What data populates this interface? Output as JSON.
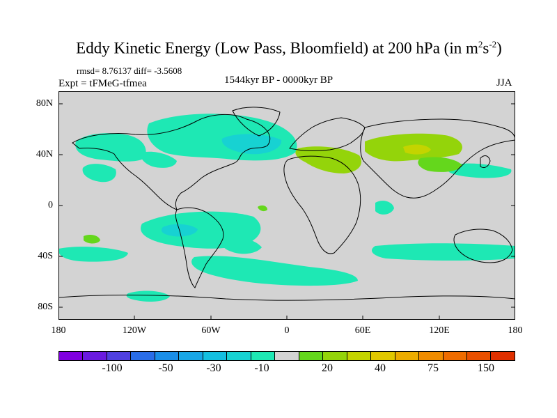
{
  "title_main": "Eddy Kinetic Energy (Low Pass, Bloomfield) at 200 hPa (in m",
  "title_sup1": "2",
  "title_mid": "s",
  "title_sup2": "-2",
  "title_end": ")",
  "stats": "rmsd= 8.76137 diff= -3.5608",
  "experiment": "Expt = tFMeG-tfmea",
  "period": "1544kyr BP - 0000kyr BP",
  "season": "JJA",
  "lat_ticks": [
    "80N",
    "40N",
    "0",
    "40S",
    "80S"
  ],
  "lon_ticks": [
    "180",
    "120W",
    "60W",
    "0",
    "60E",
    "120E",
    "180"
  ],
  "colors": {
    "background_field": "#d3d3d3",
    "neg_small": "#1ee8b4",
    "neg_medium": "#17d2d2",
    "neg_large": "#1ab9e3",
    "pos_small": "#64d71c",
    "pos_medium": "#94d40a"
  },
  "colorbar": {
    "colors": [
      "#8000e0",
      "#6a1adf",
      "#4f3fe0",
      "#2a6de8",
      "#1a8ee8",
      "#18a6e6",
      "#14bfe0",
      "#17d2d2",
      "#1ee8b4",
      "#d3d3d3",
      "#64d71c",
      "#94d40a",
      "#c4d400",
      "#e1c800",
      "#ecac00",
      "#f08c00",
      "#ef6c00",
      "#e95000",
      "#e03000"
    ],
    "labels": [
      "-100",
      "-50",
      "-30",
      "-10",
      "20",
      "40",
      "75",
      "150"
    ]
  }
}
